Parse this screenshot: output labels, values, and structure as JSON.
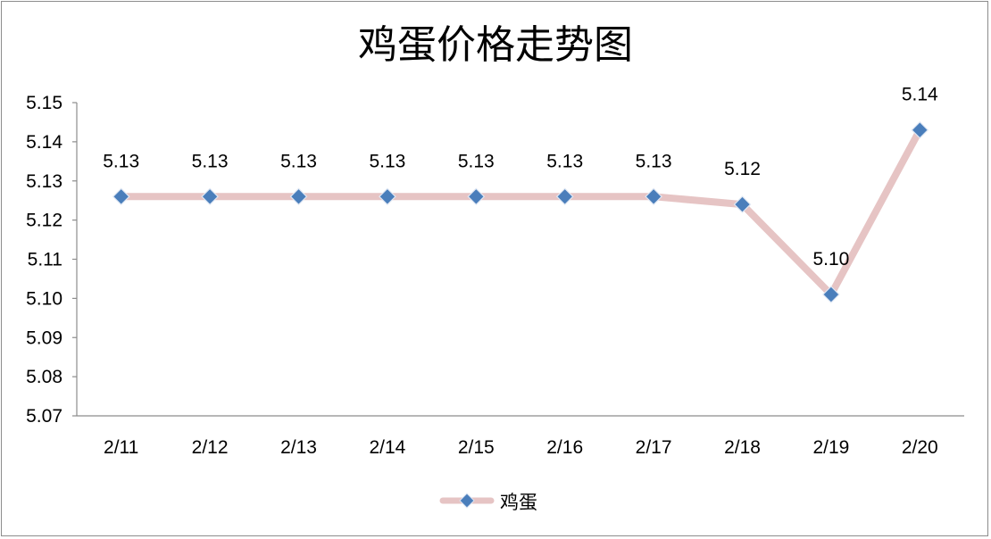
{
  "chart_data": {
    "type": "line",
    "title": "鸡蛋价格走势图",
    "xlabel": "",
    "ylabel": "",
    "categories": [
      "2/11",
      "2/12",
      "2/13",
      "2/14",
      "2/15",
      "2/16",
      "2/17",
      "2/18",
      "2/19",
      "2/20"
    ],
    "series": [
      {
        "name": "鸡蛋",
        "values": [
          5.126,
          5.126,
          5.126,
          5.126,
          5.126,
          5.126,
          5.126,
          5.124,
          5.101,
          5.143
        ],
        "labels": [
          "5.13",
          "5.13",
          "5.13",
          "5.13",
          "5.13",
          "5.13",
          "5.13",
          "5.12",
          "5.10",
          "5.14"
        ],
        "line_color": "#e6c4c4",
        "marker_color": "#4a7ebb",
        "marker": "diamond"
      }
    ],
    "ylim": [
      5.07,
      5.15
    ],
    "yticks": [
      "5.07",
      "5.08",
      "5.09",
      "5.10",
      "5.11",
      "5.12",
      "5.13",
      "5.14",
      "5.15"
    ],
    "grid": false,
    "legend_position": "bottom"
  }
}
